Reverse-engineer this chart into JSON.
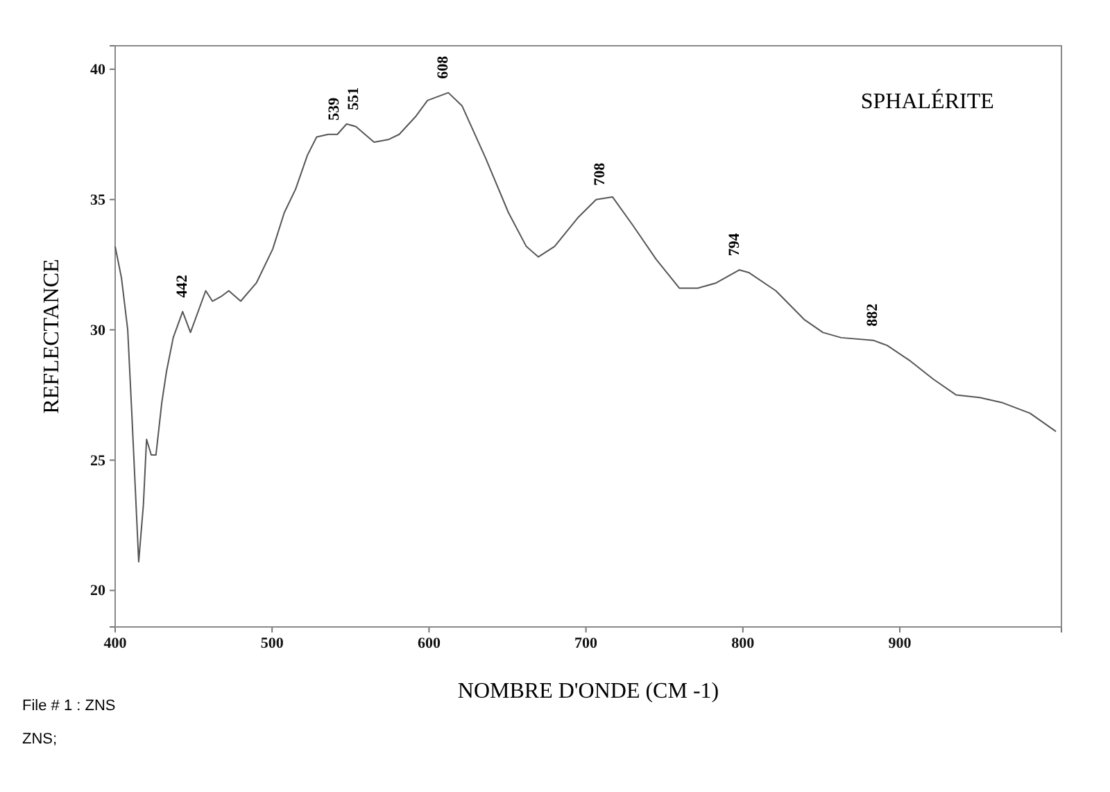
{
  "chart_data": {
    "type": "line",
    "title": "SPHALÉRITE",
    "xlabel": "NOMBRE D'ONDE (CM -1)",
    "ylabel": "REFLECTANCE",
    "xlim": [
      400,
      1003
    ],
    "ylim": [
      18.6,
      40.9
    ],
    "xticks": [
      400,
      500,
      600,
      700,
      800,
      900
    ],
    "yticks": [
      20,
      25,
      30,
      35,
      40
    ],
    "grid": false,
    "series": [
      {
        "color": "#555555",
        "x": [
          400,
          404,
          408,
          410.6,
          415,
          418,
          420,
          423,
          426,
          429.7,
          432.7,
          437,
          443,
          448,
          457.7,
          462,
          468,
          472.4,
          480,
          490,
          500.4,
          507.8,
          515,
          522.5,
          528.4,
          535.8,
          541.6,
          547.5,
          553.4,
          565,
          574,
          581,
          591.7,
          599,
          603.4,
          612.3,
          621,
          636,
          650.6,
          662,
          669.7,
          680,
          694.8,
          706.5,
          716.9,
          730,
          744.8,
          759.5,
          771.3,
          783,
          797.8,
          803.7,
          821,
          839,
          851,
          862.6,
          883,
          892,
          906.8,
          921.5,
          936,
          951,
          965.6,
          983,
          999.5
        ],
        "values": [
          33.2,
          32.0,
          30.0,
          26.8,
          21.1,
          23.3,
          25.8,
          25.2,
          25.2,
          27.2,
          28.4,
          29.7,
          30.7,
          29.9,
          31.5,
          31.1,
          31.3,
          31.5,
          31.1,
          31.8,
          33.1,
          34.5,
          35.4,
          36.7,
          37.4,
          37.5,
          37.5,
          37.9,
          37.8,
          37.2,
          37.3,
          37.5,
          38.2,
          38.8,
          38.9,
          39.1,
          38.6,
          36.6,
          34.5,
          33.2,
          32.8,
          33.2,
          34.3,
          35.0,
          35.1,
          34.0,
          32.7,
          31.6,
          31.6,
          31.8,
          32.3,
          32.2,
          31.5,
          30.4,
          29.9,
          29.7,
          29.6,
          29.4,
          28.8,
          28.1,
          27.5,
          27.4,
          27.2,
          26.8,
          26.1
        ]
      }
    ],
    "annotations": [
      {
        "text": "442",
        "x": 442,
        "y": 30.7
      },
      {
        "text": "539",
        "x": 539,
        "y": 37.5
      },
      {
        "text": "551",
        "x": 551,
        "y": 37.9
      },
      {
        "text": "608",
        "x": 608,
        "y": 39.1
      },
      {
        "text": "708",
        "x": 708,
        "y": 35.0
      },
      {
        "text": "794",
        "x": 794,
        "y": 32.3
      },
      {
        "text": "882",
        "x": 882,
        "y": 29.6
      },
      "File # 1 : ZNS",
      "ZNS;"
    ]
  }
}
